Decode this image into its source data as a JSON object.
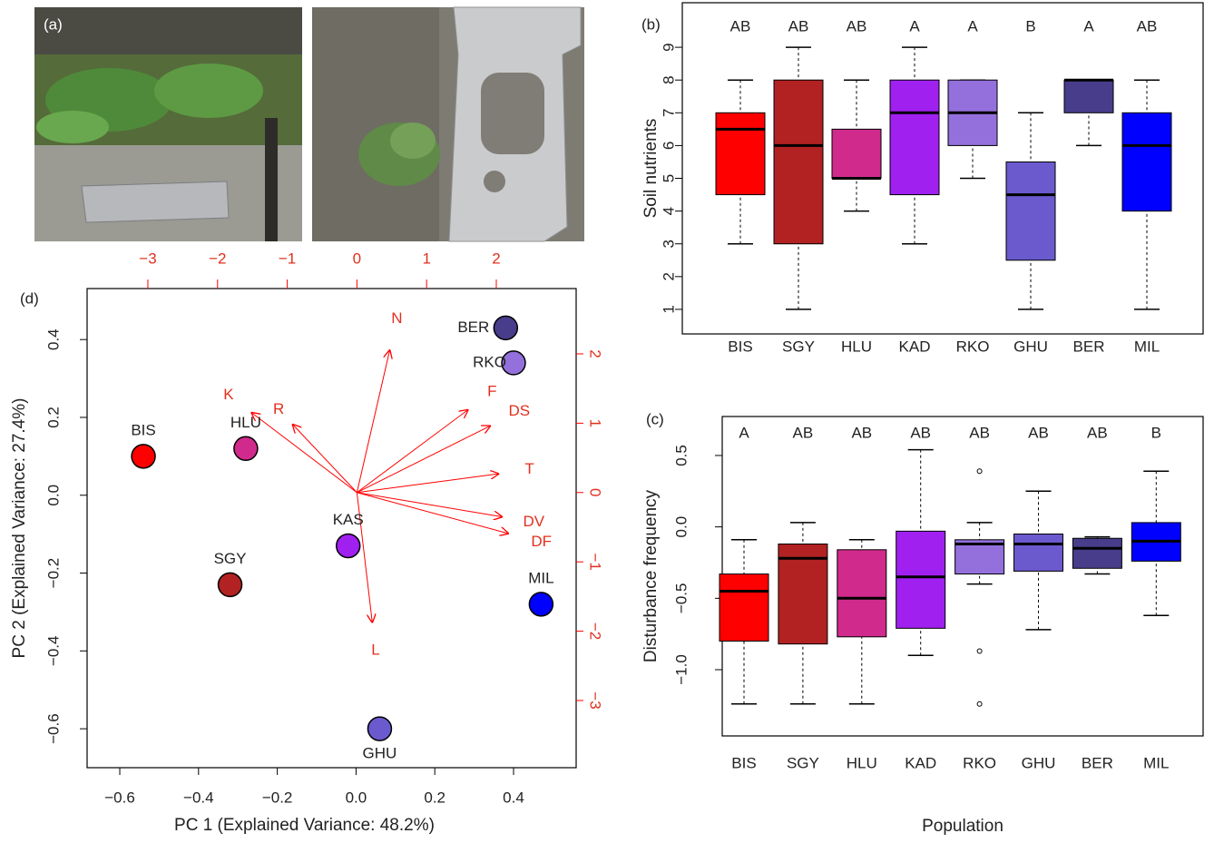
{
  "photo_panel": {
    "label": "(a)"
  },
  "chart_data": [
    {
      "type": "boxplot",
      "panel_label": "(b)",
      "y_label": "Soil nutrients",
      "categories": [
        "BIS",
        "SGY",
        "HLU",
        "KAD",
        "RKO",
        "GHU",
        "BER",
        "MIL"
      ],
      "colors": [
        "#ff0000",
        "#b22222",
        "#d02a8c",
        "#a020f0",
        "#9370db",
        "#6a5acd",
        "#483d8b",
        "#0000ff"
      ],
      "letters": [
        "AB",
        "AB",
        "AB",
        "A",
        "A",
        "B",
        "A",
        "AB"
      ],
      "boxes": [
        {
          "low": 3,
          "q1": 4.5,
          "median": 6.5,
          "q3": 7,
          "high": 8
        },
        {
          "low": 1,
          "q1": 3,
          "median": 6,
          "q3": 8,
          "high": 9
        },
        {
          "low": 4,
          "q1": 5,
          "median": 5,
          "q3": 6.5,
          "high": 8
        },
        {
          "low": 3,
          "q1": 4.5,
          "median": 7,
          "q3": 8,
          "high": 9
        },
        {
          "low": 5,
          "q1": 6,
          "median": 7,
          "q3": 8,
          "high": 8
        },
        {
          "low": 1,
          "q1": 2.5,
          "median": 4.5,
          "q3": 5.5,
          "high": 7
        },
        {
          "low": 6,
          "q1": 7,
          "median": 8,
          "q3": 8,
          "high": 8
        },
        {
          "low": 1,
          "q1": 4,
          "median": 6,
          "q3": 7,
          "high": 8
        }
      ],
      "ylim": [
        0.25,
        10.36
      ],
      "yticks": [
        1,
        2,
        3,
        4,
        5,
        6,
        7,
        8,
        9
      ]
    },
    {
      "type": "boxplot",
      "panel_label": "(c)",
      "y_label": "Disturbance frequency",
      "x_label": "Population",
      "categories": [
        "BIS",
        "SGY",
        "HLU",
        "KAD",
        "RKO",
        "GHU",
        "BER",
        "MIL"
      ],
      "colors": [
        "#ff0000",
        "#b22222",
        "#d02a8c",
        "#a020f0",
        "#9370db",
        "#6a5acd",
        "#483d8b",
        "#0000ff"
      ],
      "letters": [
        "A",
        "AB",
        "AB",
        "AB",
        "AB",
        "AB",
        "AB",
        "B"
      ],
      "boxes": [
        {
          "low": -1.24,
          "q1": -0.8,
          "median": -0.45,
          "q3": -0.33,
          "high": -0.09
        },
        {
          "low": -1.24,
          "q1": -0.82,
          "median": -0.22,
          "q3": -0.12,
          "high": 0.03
        },
        {
          "low": -1.24,
          "q1": -0.77,
          "median": -0.5,
          "q3": -0.16,
          "high": -0.09
        },
        {
          "low": -0.9,
          "q1": -0.71,
          "median": -0.35,
          "q3": -0.03,
          "high": 0.54
        },
        {
          "low": -0.4,
          "q1": -0.33,
          "median": -0.12,
          "q3": -0.09,
          "high": 0.03,
          "outliers": [
            0.39,
            -0.87,
            -1.24
          ]
        },
        {
          "low": -0.72,
          "q1": -0.31,
          "median": -0.12,
          "q3": -0.05,
          "high": 0.25
        },
        {
          "low": -0.33,
          "q1": -0.29,
          "median": -0.15,
          "q3": -0.08,
          "high": -0.07
        },
        {
          "low": -0.62,
          "q1": -0.24,
          "median": -0.1,
          "q3": 0.03,
          "high": 0.39
        }
      ],
      "ylim": [
        -1.464,
        0.773
      ],
      "yticks": [
        {
          "value": -1,
          "label": "−1.0"
        },
        {
          "value": -0.5,
          "label": "−0.5"
        },
        {
          "value": 0,
          "label": "0.0"
        },
        0.5
      ]
    },
    {
      "type": "biplot",
      "panel_label": "(d)",
      "x_label": "PC 1 (Explained Variance: 48.2%)",
      "y_label": "PC 2 (Explained Variance: 27.4%)",
      "xlim": [
        -0.683,
        0.559
      ],
      "xticks": [
        {
          "value": -0.6,
          "label": "−0.6"
        },
        {
          "value": -0.4,
          "label": "−0.4"
        },
        {
          "value": -0.2,
          "label": "−0.2"
        },
        {
          "value": 0,
          "label": "0.0"
        },
        0.2,
        0.4
      ],
      "ylim": [
        -0.7,
        0.531
      ],
      "yticks": [
        {
          "value": -0.6,
          "label": "−0.6"
        },
        {
          "value": -0.4,
          "label": "−0.4"
        },
        {
          "value": -0.2,
          "label": "−0.2"
        },
        {
          "value": 0,
          "label": "0.0"
        },
        0.2,
        0.4
      ],
      "x2lim": [
        -3.872,
        3.146
      ],
      "x2ticks": [
        {
          "value": -3,
          "label": "−3"
        },
        {
          "value": -2,
          "label": "−2"
        },
        {
          "value": -1,
          "label": "−1"
        },
        0,
        1,
        2
      ],
      "y2lim": [
        -3.969,
        2.942
      ],
      "y2ticks": [
        {
          "value": -3,
          "label": "−3"
        },
        {
          "value": -2,
          "label": "−2"
        },
        {
          "value": -1,
          "label": "−1"
        },
        0,
        1,
        2
      ],
      "points": [
        {
          "name": "BER",
          "x": 0.38,
          "y": 0.43,
          "color": "#483d8b"
        },
        {
          "name": "RKO",
          "x": 0.4,
          "y": 0.34,
          "color": "#9370db"
        },
        {
          "name": "BIS",
          "x": -0.54,
          "y": 0.1,
          "color": "#ff0000"
        },
        {
          "name": "HLU",
          "x": -0.28,
          "y": 0.12,
          "color": "#d02a8c"
        },
        {
          "name": "KAS",
          "x": -0.02,
          "y": -0.13,
          "color": "#a020f0"
        },
        {
          "name": "SGY",
          "x": -0.32,
          "y": -0.23,
          "color": "#b22222"
        },
        {
          "name": "MIL",
          "x": 0.47,
          "y": -0.28,
          "color": "#0000ff"
        },
        {
          "name": "GHU",
          "x": 0.06,
          "y": -0.6,
          "color": "#6a5acd"
        }
      ],
      "loadings": [
        {
          "name": "N",
          "x": 0.47,
          "y": 2.05
        },
        {
          "name": "K",
          "x": -1.51,
          "y": 1.15
        },
        {
          "name": "R",
          "x": -0.92,
          "y": 0.98
        },
        {
          "name": "F",
          "x": 1.59,
          "y": 1.19
        },
        {
          "name": "DS",
          "x": 1.91,
          "y": 0.96
        },
        {
          "name": "T",
          "x": 2.03,
          "y": 0.27
        },
        {
          "name": "DV",
          "x": 2.08,
          "y": -0.35
        },
        {
          "name": "DF",
          "x": 2.17,
          "y": -0.59
        },
        {
          "name": "L",
          "x": 0.22,
          "y": -1.87
        }
      ],
      "loading_color": "#ff0000"
    }
  ]
}
